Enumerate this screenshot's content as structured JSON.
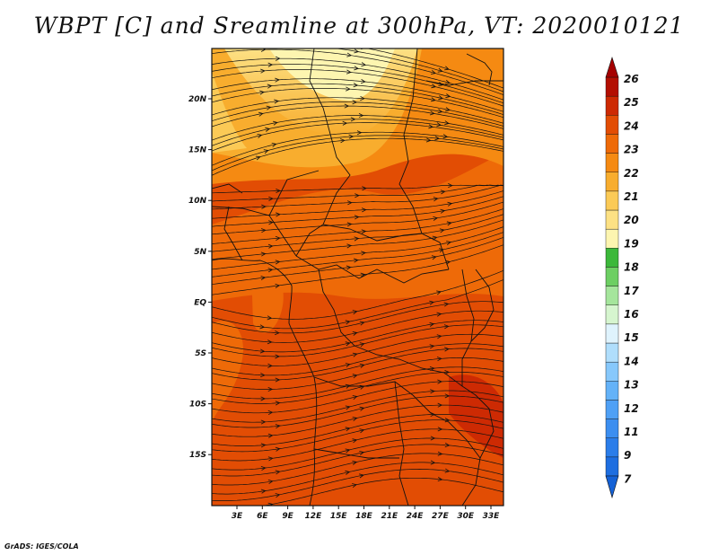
{
  "title": "WBPT [C] and Sreamline at 300hPa, VT: 2020010121",
  "credit": "GrADS: IGES/COLA",
  "map": {
    "lon_ticks": [
      "3E",
      "6E",
      "9E",
      "12E",
      "15E",
      "18E",
      "21E",
      "24E",
      "27E",
      "30E",
      "33E"
    ],
    "lat_ticks": [
      "20N",
      "15N",
      "10N",
      "5N",
      "EQ",
      "5S",
      "10S",
      "15S"
    ]
  },
  "colorbar": {
    "labels": [
      "7",
      "9",
      "11",
      "12",
      "13",
      "14",
      "15",
      "16",
      "17",
      "18",
      "19",
      "20",
      "21",
      "22",
      "23",
      "24",
      "25",
      "26"
    ],
    "colors": [
      "#1e6ee0",
      "#2b7de9",
      "#3c8ef0",
      "#4fa0f5",
      "#64b2f8",
      "#87c8fb",
      "#b0defc",
      "#dff3fd",
      "#d6f5cf",
      "#a5e59c",
      "#6dcf63",
      "#3cb83a",
      "#fdf5b0",
      "#fde184",
      "#fbca56",
      "#f8ad2e",
      "#f58a12",
      "#ee6a08",
      "#e24d04",
      "#cd2a03",
      "#b30f02"
    ],
    "arrow_low": "#1461d6",
    "arrow_high": "#a50000"
  },
  "chart_data": {
    "type": "heatmap",
    "variable": "WBPT [C]",
    "level": "300hPa",
    "valid_time": "2020010121",
    "x_axis_labels": [
      "3E",
      "6E",
      "9E",
      "12E",
      "15E",
      "18E",
      "21E",
      "24E",
      "27E",
      "30E",
      "33E"
    ],
    "y_axis_labels": [
      "20N",
      "15N",
      "10N",
      "5N",
      "EQ",
      "5S",
      "10S",
      "15S"
    ],
    "colorbar_levels": [
      7,
      9,
      11,
      12,
      13,
      14,
      15,
      16,
      17,
      18,
      19,
      20,
      21,
      22,
      23,
      24,
      25,
      26
    ]
  }
}
